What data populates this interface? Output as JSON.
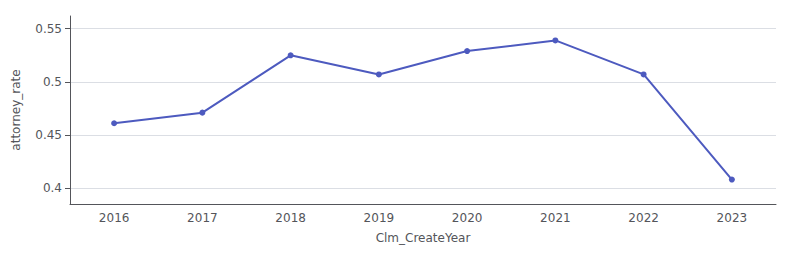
{
  "chart_data": {
    "type": "line",
    "x_label": "Clm_CreateYear",
    "y_label": "attorney_rate",
    "categories": [
      "2016",
      "2017",
      "2018",
      "2019",
      "2020",
      "2021",
      "2022",
      "2023"
    ],
    "values": [
      0.461,
      0.471,
      0.525,
      0.507,
      0.529,
      0.539,
      0.507,
      0.408
    ],
    "color": "#4d5abf",
    "marker": "circle",
    "ylim": [
      0.385,
      0.562
    ],
    "yticks": [
      0.4,
      0.45,
      0.5,
      0.55
    ],
    "grid": true
  }
}
